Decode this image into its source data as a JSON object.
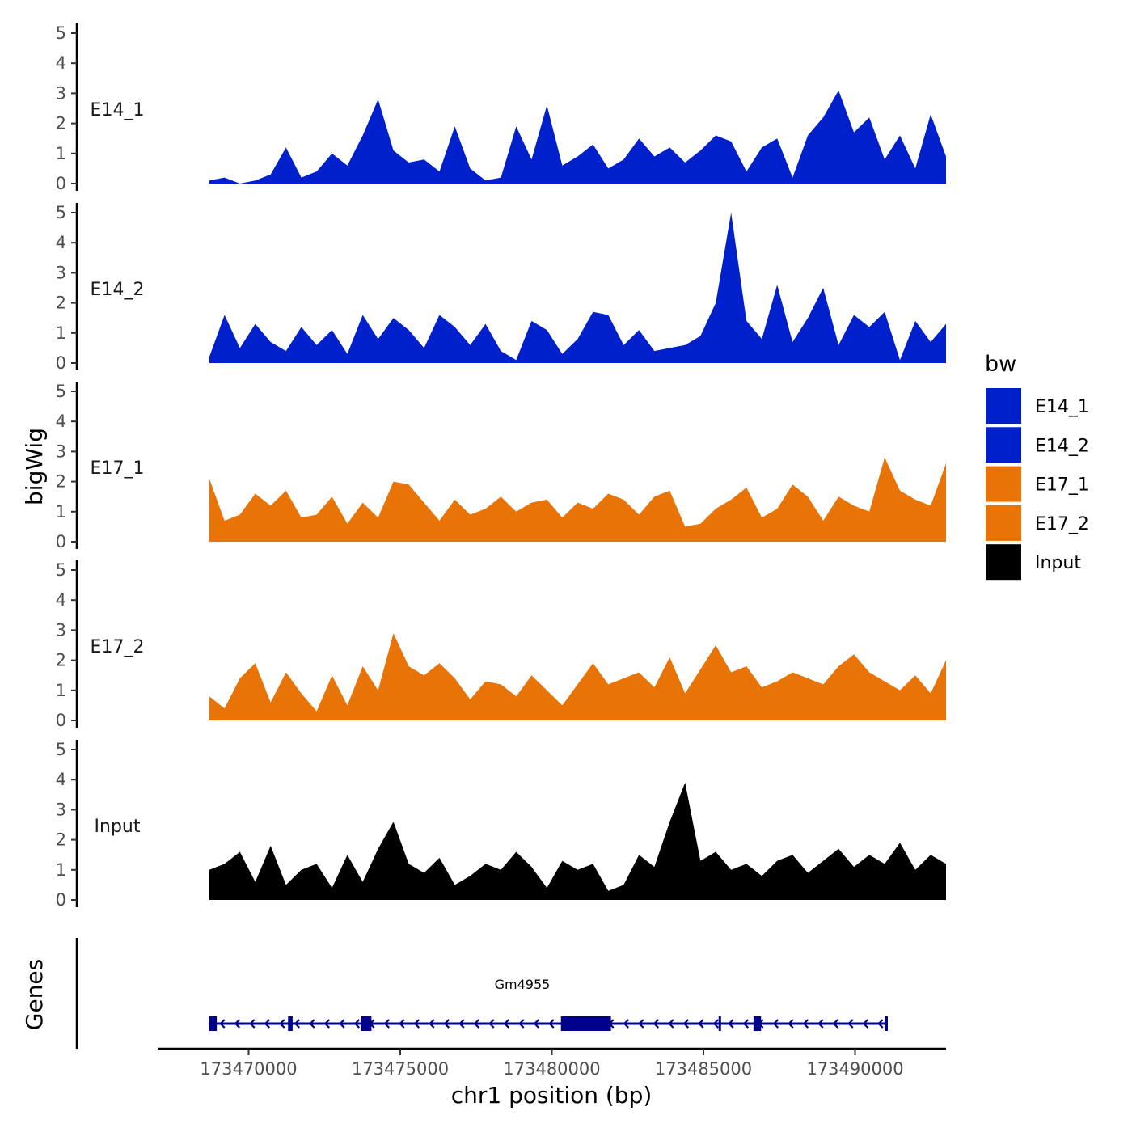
{
  "chart_data": {
    "type": "area",
    "ylabel": "bigWig",
    "xlabel": "chr1 position (bp)",
    "xlim": [
      173467000,
      173493000
    ],
    "x_ticks": [
      173470000,
      173475000,
      173480000,
      173485000,
      173490000
    ],
    "x_tick_labels": [
      "173470000",
      "173475000",
      "173480000",
      "173485000",
      "173490000"
    ],
    "ylim": [
      0,
      5
    ],
    "y_ticks": [
      0,
      1,
      2,
      3,
      4,
      5
    ],
    "y_tick_labels": [
      "0",
      "1",
      "2",
      "3",
      "4",
      "5"
    ],
    "signal_range": [
      173468700,
      173493000
    ],
    "samples_per_track": 49,
    "tracks": [
      {
        "name": "E14_1",
        "color": "#0020CC",
        "values": [
          0.1,
          0.2,
          0,
          0.1,
          0.3,
          1.2,
          0.2,
          0.4,
          1.0,
          0.6,
          1.6,
          2.8,
          1.1,
          0.7,
          0.8,
          0.4,
          1.9,
          0.5,
          0.1,
          0.2,
          1.9,
          0.8,
          2.6,
          0.6,
          0.9,
          1.3,
          0.5,
          0.8,
          1.5,
          0.9,
          1.2,
          0.7,
          1.1,
          1.6,
          1.4,
          0.4,
          1.2,
          1.5,
          0.2,
          1.6,
          2.2,
          3.1,
          1.7,
          2.2,
          0.8,
          1.6,
          0.5,
          2.3,
          0.9
        ]
      },
      {
        "name": "E14_2",
        "color": "#0020CC",
        "values": [
          0.2,
          1.6,
          0.5,
          1.3,
          0.7,
          0.4,
          1.2,
          0.6,
          1.1,
          0.3,
          1.6,
          0.8,
          1.5,
          1.1,
          0.5,
          1.6,
          1.2,
          0.6,
          1.3,
          0.4,
          0.1,
          1.4,
          1.1,
          0.3,
          0.8,
          1.7,
          1.6,
          0.6,
          1.1,
          0.4,
          0.5,
          0.6,
          0.9,
          2.0,
          5.0,
          1.4,
          0.8,
          2.6,
          0.7,
          1.5,
          2.5,
          0.6,
          1.6,
          1.2,
          1.7,
          0.1,
          1.4,
          0.7,
          1.3
        ]
      },
      {
        "name": "E17_1",
        "color": "#E87306",
        "values": [
          2.1,
          0.7,
          0.9,
          1.6,
          1.2,
          1.7,
          0.8,
          0.9,
          1.5,
          0.6,
          1.3,
          0.8,
          2.0,
          1.9,
          1.3,
          0.7,
          1.4,
          0.9,
          1.1,
          1.5,
          1.0,
          1.3,
          1.4,
          0.8,
          1.3,
          1.1,
          1.6,
          1.4,
          0.9,
          1.5,
          1.7,
          0.5,
          0.6,
          1.1,
          1.4,
          1.8,
          0.8,
          1.1,
          1.9,
          1.5,
          0.7,
          1.5,
          1.2,
          1.0,
          2.8,
          1.7,
          1.4,
          1.2,
          2.6
        ]
      },
      {
        "name": "E17_2",
        "color": "#E87306",
        "values": [
          0.8,
          0.4,
          1.4,
          1.9,
          0.6,
          1.6,
          0.9,
          0.3,
          1.5,
          0.5,
          1.8,
          1.0,
          2.9,
          1.8,
          1.5,
          1.9,
          1.4,
          0.7,
          1.3,
          1.2,
          0.8,
          1.5,
          1.0,
          0.5,
          1.2,
          1.9,
          1.2,
          1.4,
          1.6,
          1.1,
          2.1,
          0.9,
          1.7,
          2.5,
          1.6,
          1.8,
          1.1,
          1.3,
          1.6,
          1.4,
          1.2,
          1.8,
          2.2,
          1.6,
          1.3,
          1.0,
          1.5,
          0.9,
          2.0
        ]
      },
      {
        "name": "Input",
        "color": "#000000",
        "values": [
          1.0,
          1.2,
          1.6,
          0.6,
          1.8,
          0.5,
          1.0,
          1.2,
          0.4,
          1.5,
          0.6,
          1.7,
          2.6,
          1.2,
          0.9,
          1.4,
          0.5,
          0.8,
          1.2,
          1.0,
          1.6,
          1.1,
          0.4,
          1.3,
          1.0,
          1.2,
          0.3,
          0.5,
          1.5,
          1.1,
          2.6,
          3.9,
          1.3,
          1.6,
          1.0,
          1.2,
          0.8,
          1.3,
          1.5,
          0.9,
          1.3,
          1.7,
          1.1,
          1.5,
          1.2,
          1.9,
          1.0,
          1.5,
          1.2
        ]
      }
    ],
    "legend": {
      "title": "bw",
      "position": "right",
      "items": [
        {
          "label": "E14_1",
          "color": "#0020CC"
        },
        {
          "label": "E14_2",
          "color": "#0020CC"
        },
        {
          "label": "E17_1",
          "color": "#E87306"
        },
        {
          "label": "E17_2",
          "color": "#E87306"
        },
        {
          "label": "Input",
          "color": "#000000"
        }
      ]
    },
    "genes_panel": {
      "ylabel": "Genes",
      "gene": {
        "name": "Gm4955",
        "start": 173468700,
        "end": 173491000,
        "strand": "-",
        "color": "#00008B",
        "exons": [
          [
            173468700,
            173468950
          ],
          [
            173471300,
            173471450
          ],
          [
            173473700,
            173474050
          ],
          [
            173480300,
            173481950
          ],
          [
            173485500,
            173485550
          ],
          [
            173486650,
            173486900
          ],
          [
            173491000,
            173491030
          ]
        ]
      }
    }
  }
}
